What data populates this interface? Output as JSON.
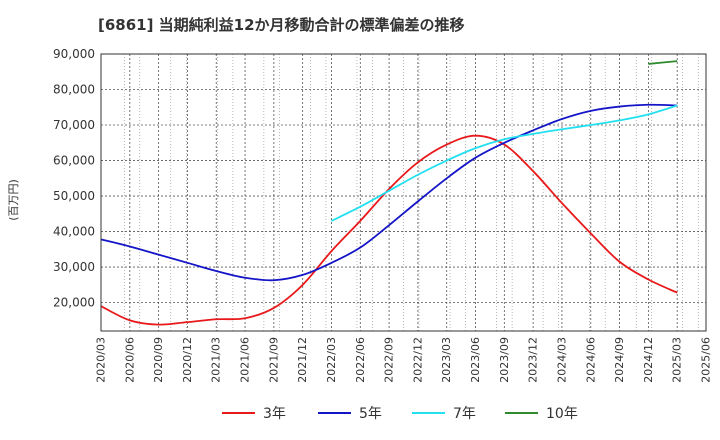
{
  "chart_data": {
    "type": "line",
    "title": "[6861]  当期純利益12か月移動合計の標準偏差の推移",
    "ylabel": "(百万円)",
    "xlabel": "",
    "ylim": [
      12000,
      90000
    ],
    "yticks": [
      20000,
      30000,
      40000,
      50000,
      60000,
      70000,
      80000,
      90000
    ],
    "ytick_labels": [
      "20,000",
      "30,000",
      "40,000",
      "50,000",
      "60,000",
      "70,000",
      "80,000",
      "90,000"
    ],
    "categories": [
      "2020/03",
      "2020/06",
      "2020/09",
      "2020/12",
      "2021/03",
      "2021/06",
      "2021/09",
      "2021/12",
      "2022/03",
      "2022/06",
      "2022/09",
      "2022/12",
      "2023/03",
      "2023/06",
      "2023/09",
      "2023/12",
      "2024/03",
      "2024/06",
      "2024/09",
      "2024/12",
      "2025/03",
      "2025/06"
    ],
    "grid": true,
    "legend_position": "bottom",
    "series": [
      {
        "name": "3年",
        "color": "#e8191b",
        "values": [
          19000,
          15000,
          13800,
          14500,
          15300,
          15600,
          18500,
          25000,
          34500,
          43000,
          52000,
          59500,
          64500,
          67000,
          64500,
          57000,
          48000,
          39500,
          31500,
          26500,
          22800,
          null
        ]
      },
      {
        "name": "5年",
        "color": "#1515c8",
        "values": [
          37800,
          35800,
          33500,
          31200,
          28900,
          27000,
          26300,
          27800,
          31200,
          35500,
          41800,
          48500,
          55000,
          60800,
          65000,
          68500,
          71700,
          74000,
          75200,
          75700,
          75500,
          null
        ]
      },
      {
        "name": "7年",
        "color": "#22e0f0",
        "values": [
          null,
          null,
          null,
          null,
          null,
          null,
          null,
          null,
          43000,
          47000,
          51500,
          56000,
          60000,
          63500,
          66000,
          67500,
          68800,
          70000,
          71300,
          73000,
          75500,
          null
        ]
      },
      {
        "name": "10年",
        "color": "#2e8b2e",
        "values": [
          null,
          null,
          null,
          null,
          null,
          null,
          null,
          null,
          null,
          null,
          null,
          null,
          null,
          null,
          null,
          null,
          null,
          null,
          null,
          87200,
          88000,
          null
        ]
      }
    ]
  }
}
